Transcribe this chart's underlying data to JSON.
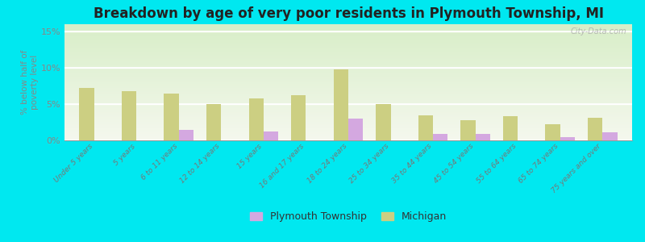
{
  "title": "Breakdown by age of very poor residents in Plymouth Township, MI",
  "categories": [
    "Under 5 years",
    "5 years",
    "6 to 11 years",
    "12 to 14 years",
    "15 years",
    "16 and 17 years",
    "18 to 24 years",
    "25 to 34 years",
    "35 to 44 years",
    "45 to 54 years",
    "55 to 64 years",
    "65 to 74 years",
    "75 years and over"
  ],
  "plymouth_values": [
    0,
    0,
    1.5,
    0,
    1.2,
    0,
    3.0,
    0,
    0.9,
    0.9,
    0,
    0.4,
    1.1
  ],
  "michigan_values": [
    7.2,
    6.8,
    6.4,
    5.0,
    5.8,
    6.2,
    9.8,
    5.0,
    3.5,
    2.8,
    3.3,
    2.2,
    3.1
  ],
  "plymouth_color": "#d4a8e0",
  "michigan_color": "#cccf82",
  "background_outer": "#00e8f0",
  "background_plot_top": "#f0f5e0",
  "background_plot_bottom": "#e0f0e8",
  "ylabel": "% below half of\npoverty level",
  "ylim": [
    0,
    16
  ],
  "yticks": [
    0,
    5,
    10,
    15
  ],
  "ytick_labels": [
    "0%",
    "5%",
    "10%",
    "15%"
  ],
  "title_fontsize": 12,
  "bar_width": 0.35,
  "legend_labels": [
    "Plymouth Township",
    "Michigan"
  ],
  "watermark": "City-Data.com"
}
